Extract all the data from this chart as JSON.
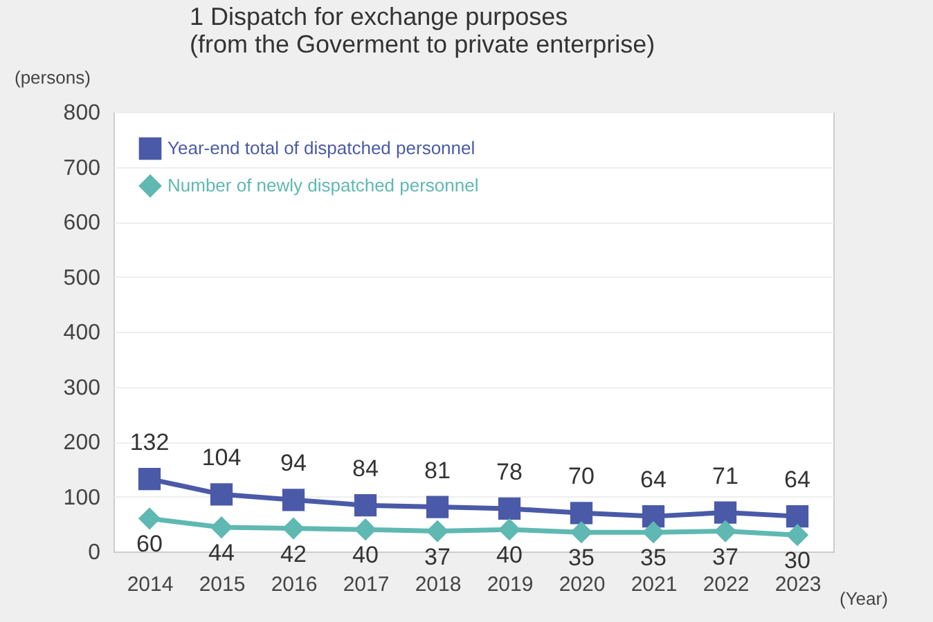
{
  "chart_data": {
    "type": "line",
    "title": "1  Dispatch for exchange purposes\n(from the Goverment to private enterprise)",
    "xlabel": "(Year)",
    "ylabel": "(persons)",
    "categories": [
      "2014",
      "2015",
      "2016",
      "2017",
      "2018",
      "2019",
      "2020",
      "2021",
      "2022",
      "2023"
    ],
    "series": [
      {
        "name": "Year-end total of dispatched personnel",
        "color": "#4a5aa8",
        "marker": "square",
        "values": [
          132,
          104,
          94,
          84,
          81,
          78,
          70,
          64,
          71,
          64
        ]
      },
      {
        "name": "Number of newly dispatched personnel",
        "color": "#5fb8b2",
        "marker": "diamond",
        "values": [
          60,
          44,
          42,
          40,
          37,
          40,
          35,
          35,
          37,
          30
        ]
      }
    ],
    "ylim": [
      0,
      800
    ],
    "yticks": [
      0,
      100,
      200,
      300,
      400,
      500,
      600,
      700,
      800
    ],
    "grid": "y",
    "legend": "top left",
    "data_labels": true,
    "line_style": "solid"
  }
}
